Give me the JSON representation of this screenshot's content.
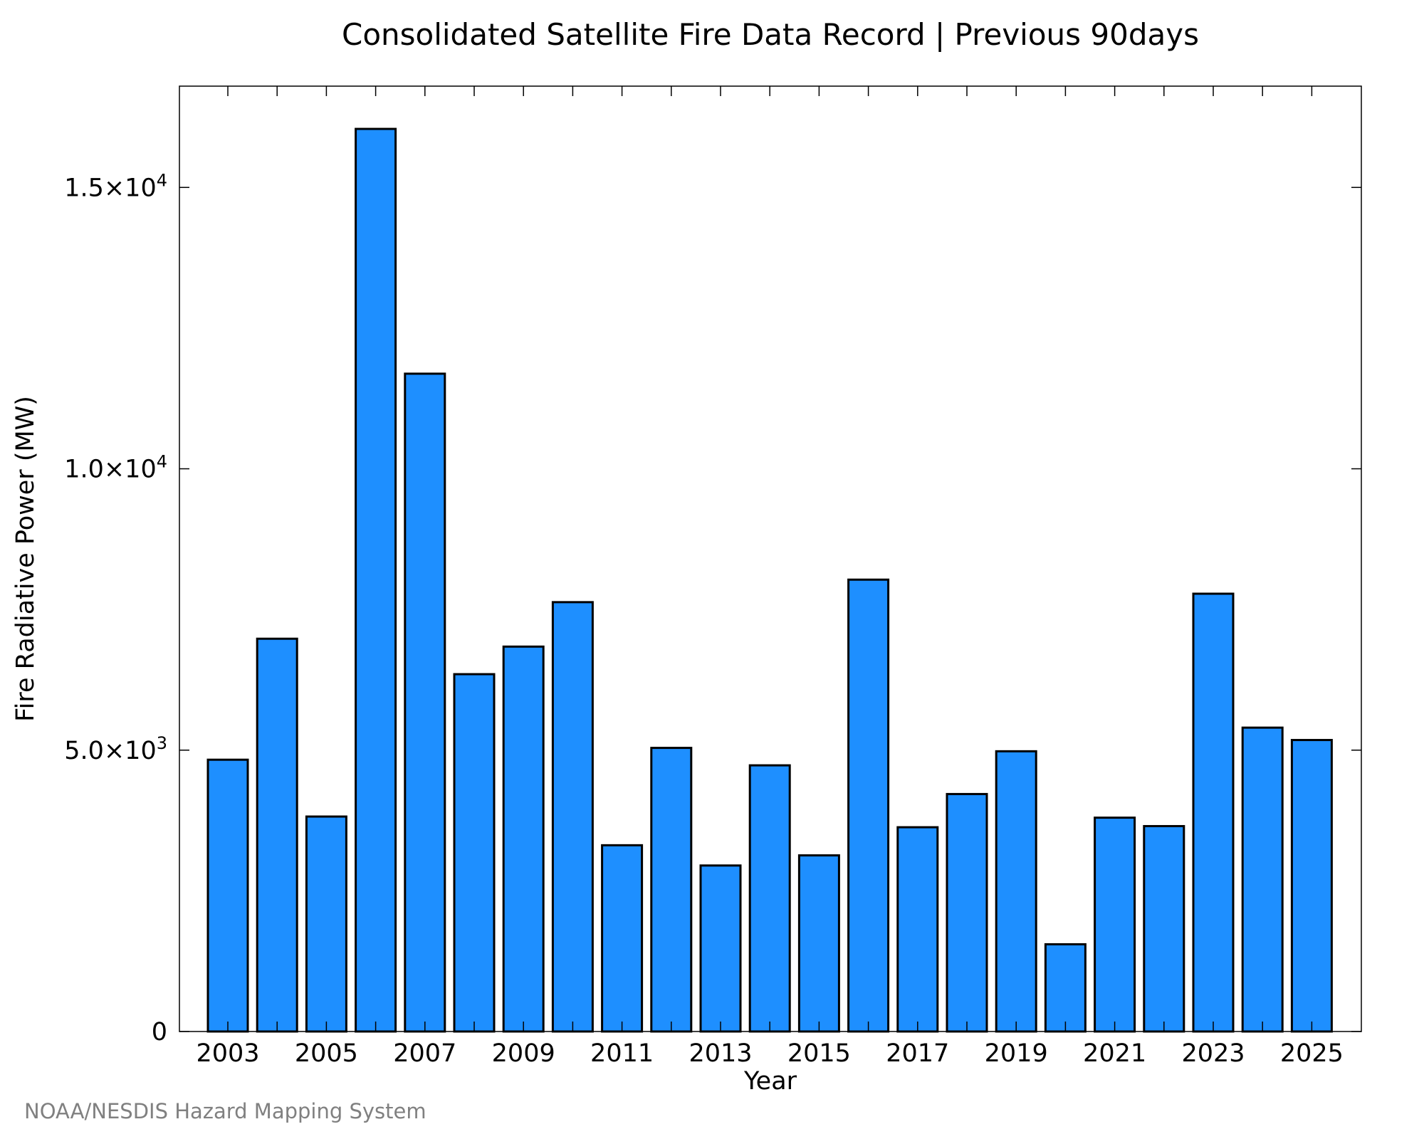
{
  "chart_data": {
    "type": "bar",
    "title": "Consolidated Satellite Fire Data Record | Previous 90days",
    "xlabel": "Year",
    "ylabel": "Fire Radiative Power (MW)",
    "ylim": [
      0,
      16800
    ],
    "categories": [
      2003,
      2004,
      2005,
      2006,
      2007,
      2008,
      2009,
      2010,
      2011,
      2012,
      2013,
      2014,
      2015,
      2016,
      2017,
      2018,
      2019,
      2020,
      2021,
      2022,
      2023,
      2024,
      2025
    ],
    "values": [
      4830,
      6980,
      3820,
      16040,
      11690,
      6350,
      6840,
      7630,
      3310,
      5040,
      2950,
      4730,
      3130,
      8030,
      3630,
      4220,
      4980,
      1550,
      3800,
      3650,
      7780,
      5400,
      5180
    ],
    "x_ticks": [
      {
        "value": 2003,
        "label": "2003"
      },
      {
        "value": 2005,
        "label": "2005"
      },
      {
        "value": 2007,
        "label": "2007"
      },
      {
        "value": 2009,
        "label": "2009"
      },
      {
        "value": 2011,
        "label": "2011"
      },
      {
        "value": 2013,
        "label": "2013"
      },
      {
        "value": 2015,
        "label": "2015"
      },
      {
        "value": 2017,
        "label": "2017"
      },
      {
        "value": 2019,
        "label": "2019"
      },
      {
        "value": 2021,
        "label": "2021"
      },
      {
        "value": 2023,
        "label": "2023"
      },
      {
        "value": 2025,
        "label": "2025"
      }
    ],
    "y_ticks": [
      {
        "value": 0,
        "mantissa": "0",
        "exp": ""
      },
      {
        "value": 5000,
        "mantissa": "5.0×10",
        "exp": "3"
      },
      {
        "value": 10000,
        "mantissa": "1.0×10",
        "exp": "4"
      },
      {
        "value": 15000,
        "mantissa": "1.5×10",
        "exp": "4"
      }
    ],
    "bar_color": "#1e8fff",
    "grid": false,
    "legend": "none"
  },
  "credit": "NOAA/NESDIS Hazard Mapping System"
}
